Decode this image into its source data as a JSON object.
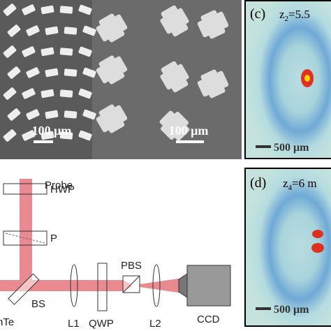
{
  "sem_left": {
    "scale_bar": "100 μm"
  },
  "sem_right": {
    "scale_bar": "100 μm"
  },
  "panel_c": {
    "label": "(c)",
    "z_symbol": "z",
    "z_index": "2",
    "z_value": "=5.5",
    "scale_bar": "500 μm"
  },
  "panel_d": {
    "label": "(d)",
    "z_symbol": "z",
    "z_index": "4",
    "z_value": "=6 m",
    "scale_bar": "500 μm"
  },
  "setup": {
    "probe": "Probe",
    "hwp": "HWP",
    "polarizer": "P",
    "bs": "BS",
    "pbs": "PBS",
    "l1": "L1",
    "qwp": "QWP",
    "l2": "L2",
    "ccd": "CCD",
    "sample": "nTe"
  }
}
